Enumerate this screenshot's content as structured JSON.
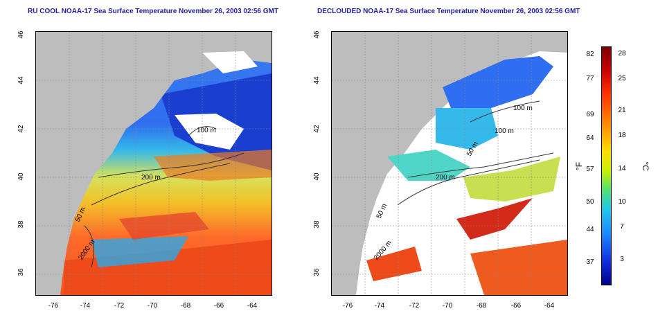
{
  "left_panel": {
    "title": "RU COOL NOAA-17 Sea Surface Temperature November 26, 2003 02:56 GMT",
    "contours": [
      "100 m",
      "200 m",
      "2000 m",
      "50 m"
    ]
  },
  "right_panel": {
    "title": "DECLOUDED NOAA-17 Sea Surface Temperature November 26, 2003 02:56 GMT",
    "contours": [
      "100 m",
      "100 m",
      "50 m",
      "200 m",
      "50 m",
      "2000 m"
    ]
  },
  "axes": {
    "lat_ticks": [
      "46",
      "44",
      "42",
      "40",
      "38",
      "36"
    ],
    "lon_ticks": [
      "-76",
      "-74",
      "-72",
      "-70",
      "-68",
      "-66",
      "-64"
    ]
  },
  "colorbar": {
    "fahrenheit_ticks": [
      "82",
      "77",
      "69",
      "64",
      "57",
      "50",
      "44",
      "37"
    ],
    "celsius_ticks": [
      "28",
      "25",
      "21",
      "18",
      "14",
      "10",
      "7",
      "3"
    ],
    "fahrenheit_label": "°F",
    "celsius_label": "°C"
  },
  "colors": {
    "land": "#bdbdbd",
    "cloud": "#ffffff",
    "title": "#1f1fa0"
  }
}
